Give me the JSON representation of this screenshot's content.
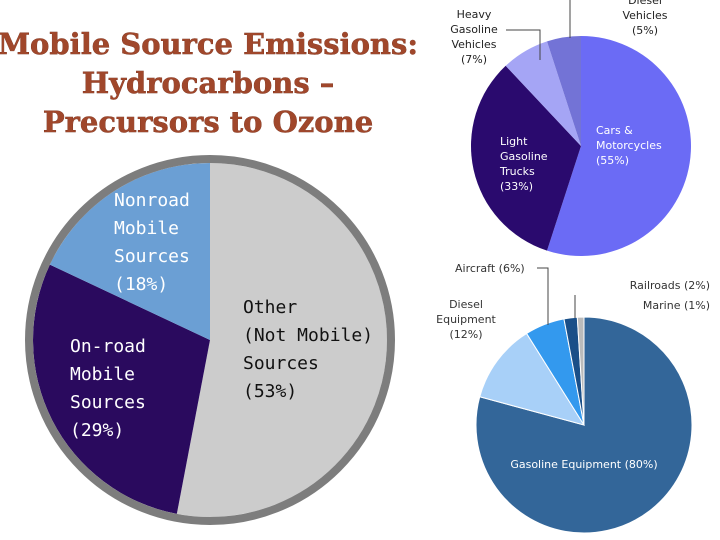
{
  "title": {
    "line1": "Mobile Source Emissions:",
    "line2": "Hydrocarbons –",
    "line3": "Precursors to Ozone"
  },
  "colors": {
    "title": "#a0472b",
    "nonroad": "#6b9fd4",
    "onroad": "#2a0a5e",
    "other": "#cccccc",
    "pie_rim": "#7d7d7d",
    "cars": "#6b6bf5",
    "light_trucks": "#2a0a6e",
    "heavy_gas": "#a5a5f5",
    "diesel_vehicles": "#7373d6",
    "gas_equipment": "#336699",
    "diesel_equipment": "#a8d0f8",
    "aircraft": "#3399ee",
    "railroads": "#1a4f88",
    "marine": "#bbbbbb"
  },
  "chart_data": [
    {
      "type": "pie",
      "categories": [
        "Nonroad Mobile Sources",
        "On-road Mobile Sources",
        "Other (Not Mobile) Sources"
      ],
      "values": [
        18,
        29,
        53
      ],
      "labels": [
        {
          "lines": [
            "Nonroad",
            "Mobile",
            "Sources",
            "(18%)"
          ]
        },
        {
          "lines": [
            "On-road",
            "Mobile",
            "Sources",
            "(29%)"
          ]
        },
        {
          "lines": [
            "Other",
            "(Not Mobile)",
            "Sources",
            "(53%)"
          ]
        }
      ]
    },
    {
      "type": "pie",
      "categories": [
        "Cars & Motorcycles",
        "Light Gasoline Trucks",
        "Heavy Gasoline Vehicles",
        "Diesel Vehicles"
      ],
      "values": [
        55,
        33,
        7,
        5
      ],
      "labels": [
        {
          "lines": [
            "Cars &",
            "Motorcycles",
            "(55%)"
          ]
        },
        {
          "lines": [
            "Light",
            "Gasoline",
            "Trucks",
            "(33%)"
          ]
        },
        {
          "lines": [
            "Heavy",
            "Gasoline",
            "Vehicles",
            "(7%)"
          ]
        },
        {
          "lines": [
            "Diesel",
            "Vehicles",
            "(5%)"
          ]
        }
      ]
    },
    {
      "type": "pie",
      "categories": [
        "Gasoline Equipment",
        "Diesel Equipment",
        "Aircraft",
        "Railroads",
        "Marine"
      ],
      "values": [
        80,
        12,
        6,
        2,
        1
      ],
      "labels": [
        {
          "lines": [
            "Gasoline Equipment (80%)"
          ]
        },
        {
          "lines": [
            "Diesel",
            "Equipment",
            "(12%)"
          ]
        },
        {
          "lines": [
            "Aircraft (6%)"
          ]
        },
        {
          "lines": [
            "Railroads (2%)"
          ]
        },
        {
          "lines": [
            "Marine (1%)"
          ]
        }
      ]
    }
  ]
}
